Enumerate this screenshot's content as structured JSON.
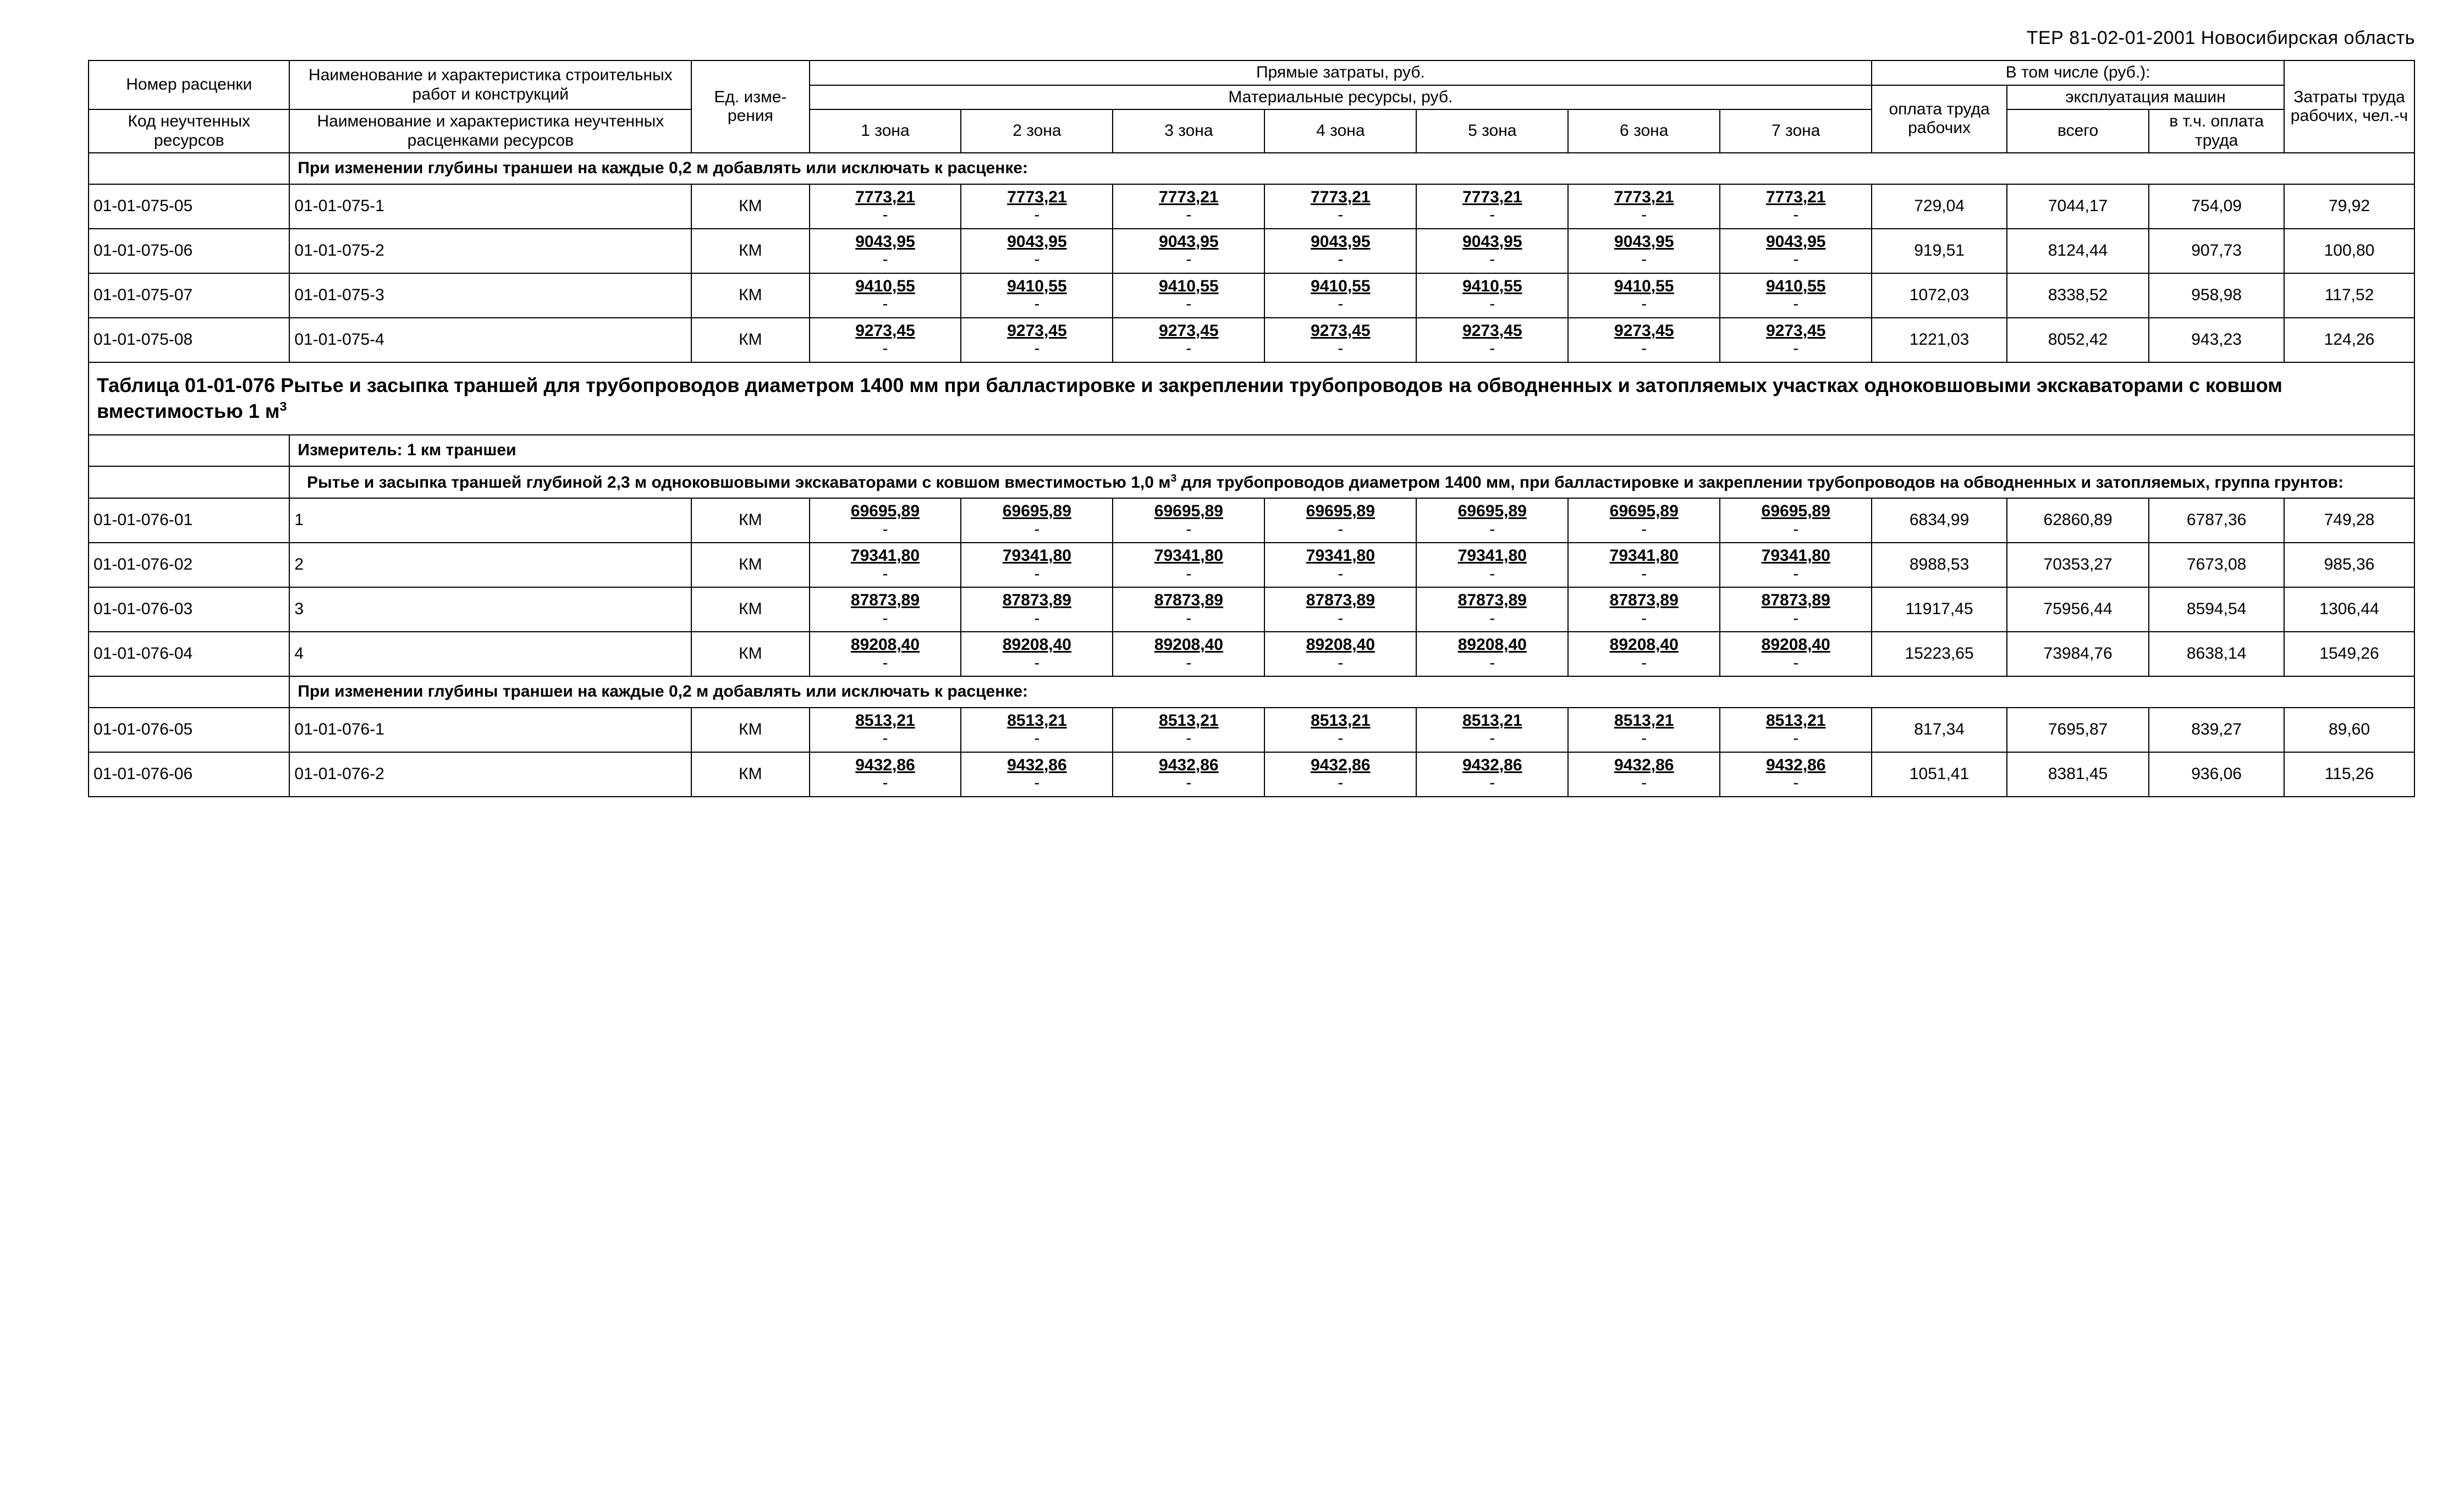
{
  "doc_header": "ТЕР 81-02-01-2001    Новосибирская область",
  "head": {
    "num": "Номер расценки",
    "name": "Наименование и характеристика строительных работ и конструкций",
    "code": "Код неучтенных ресурсов",
    "name2": "Наименование и характеристика неучтенных расценками ресурсов",
    "unit": "Ед. изме­рения",
    "direct": "Прямые затраты, руб.",
    "mat": "Материальные ресурсы, руб.",
    "including": "В том числе (руб.):",
    "labor": "оплата труда рабочих",
    "mach": "эксплуатация машин",
    "mach_total": "всего",
    "mach_wage": "в т.ч. оплата труда",
    "lh": "Затраты труда рабочих, чел.-ч",
    "z": [
      "1 зона",
      "2 зона",
      "3 зона",
      "4 зона",
      "5 зона",
      "6 зона",
      "7 зона"
    ]
  },
  "sec1": "При изменении глубины траншеи на каждые 0,2 м добавлять или исключать к расценке:",
  "rows1": [
    {
      "c": "01-01-075-05",
      "n": "01-01-075-1",
      "u": "КМ",
      "z": "7773,21",
      "lab": "729,04",
      "mt": "7044,17",
      "mw": "754,09",
      "lh": "79,92"
    },
    {
      "c": "01-01-075-06",
      "n": "01-01-075-2",
      "u": "КМ",
      "z": "9043,95",
      "lab": "919,51",
      "mt": "8124,44",
      "mw": "907,73",
      "lh": "100,80"
    },
    {
      "c": "01-01-075-07",
      "n": "01-01-075-3",
      "u": "КМ",
      "z": "9410,55",
      "lab": "1072,03",
      "mt": "8338,52",
      "mw": "958,98",
      "lh": "117,52"
    },
    {
      "c": "01-01-075-08",
      "n": "01-01-075-4",
      "u": "КМ",
      "z": "9273,45",
      "lab": "1221,03",
      "mt": "8052,42",
      "mw": "943,23",
      "lh": "124,26"
    }
  ],
  "title076": "Таблица 01-01-076 Рытье и засыпка траншей для трубопроводов диаметром 1400 мм при балластировке и закреплении трубопроводов на обводненных и затопляемых участках одноковшовыми экскаваторами с ковшом вместимостью 1 м³",
  "meas": "Измеритель: 1 км траншеи",
  "desc076": "Рытье и засыпка траншей глубиной 2,3 м одноковшовыми экскаваторами с ковшом вместимостью 1,0 м³ для трубопроводов диаметром 1400 мм, при балластировке и закреплении трубопроводов на обводненных и затопляемых, группа грунтов:",
  "rows2": [
    {
      "c": "01-01-076-01",
      "n": "1",
      "u": "КМ",
      "z": "69695,89",
      "lab": "6834,99",
      "mt": "62860,89",
      "mw": "6787,36",
      "lh": "749,28"
    },
    {
      "c": "01-01-076-02",
      "n": "2",
      "u": "КМ",
      "z": "79341,80",
      "lab": "8988,53",
      "mt": "70353,27",
      "mw": "7673,08",
      "lh": "985,36"
    },
    {
      "c": "01-01-076-03",
      "n": "3",
      "u": "КМ",
      "z": "87873,89",
      "lab": "11917,45",
      "mt": "75956,44",
      "mw": "8594,54",
      "lh": "1306,44"
    },
    {
      "c": "01-01-076-04",
      "n": "4",
      "u": "КМ",
      "z": "89208,40",
      "lab": "15223,65",
      "mt": "73984,76",
      "mw": "8638,14",
      "lh": "1549,26"
    }
  ],
  "sec3": "При изменении глубины траншеи на каждые 0,2 м добавлять или исключать к расценке:",
  "rows3": [
    {
      "c": "01-01-076-05",
      "n": "01-01-076-1",
      "u": "КМ",
      "z": "8513,21",
      "lab": "817,34",
      "mt": "7695,87",
      "mw": "839,27",
      "lh": "89,60"
    },
    {
      "c": "01-01-076-06",
      "n": "01-01-076-2",
      "u": "КМ",
      "z": "9432,86",
      "lab": "1051,41",
      "mt": "8381,45",
      "mw": "936,06",
      "lh": "115,26"
    }
  ]
}
